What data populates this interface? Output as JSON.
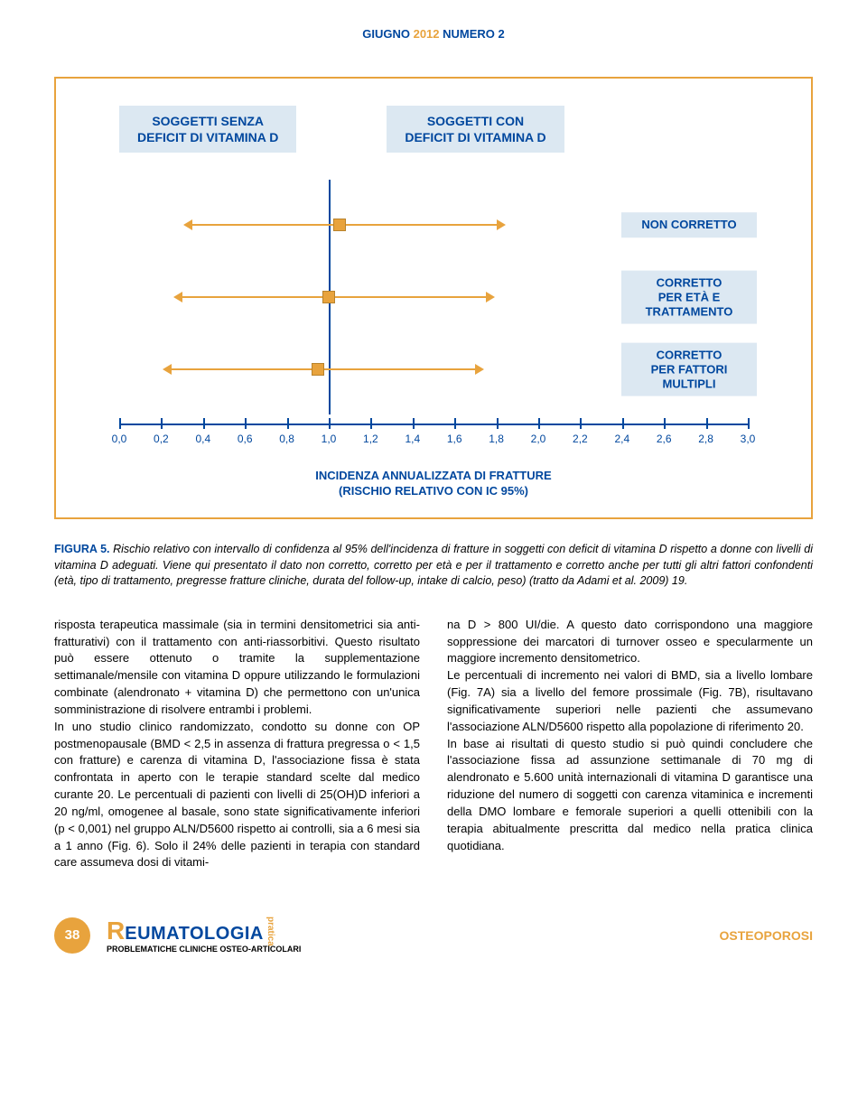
{
  "header": {
    "month": "GIUGNO",
    "year": "2012",
    "numero": "NUMERO 2"
  },
  "chart": {
    "label_left": "SOGGETTI SENZA\nDEFICIT DI VITAMINA D",
    "label_right": "SOGGETTI CON\nDEFICIT DI VITAMINA D",
    "rows": [
      {
        "label": "NON CORRETTO",
        "low": 0.35,
        "point": 1.05,
        "high": 1.8
      },
      {
        "label": "CORRETTO\nPER ETÀ E\nTRATTAMENTO",
        "low": 0.3,
        "point": 1.0,
        "high": 1.75
      },
      {
        "label": "CORRETTO\nPER FATTORI\nMULTIPLI",
        "low": 0.25,
        "point": 0.95,
        "high": 1.7
      }
    ],
    "xmin": 0.0,
    "xmax": 3.0,
    "xstep": 0.2,
    "xticks": [
      "0,0",
      "0,2",
      "0,4",
      "0,6",
      "0,8",
      "1,0",
      "1,2",
      "1,4",
      "1,6",
      "1,8",
      "2,0",
      "2,2",
      "2,4",
      "2,6",
      "2,8",
      "3,0"
    ],
    "axis_title_line1": "INCIDENZA ANNUALIZZATA DI FRATTURE",
    "axis_title_line2": "(RISCHIO RELATIVO CON IC 95%)",
    "divider_at": 1.0,
    "colors": {
      "accent_blue": "#00479e",
      "accent_orange": "#e8a33d",
      "box_bg": "#dce8f2"
    }
  },
  "figure_caption": {
    "label": "FIGURA 5.",
    "text": "Rischio relativo con intervallo di confidenza al 95% dell'incidenza di fratture in soggetti con deficit di vitamina D rispetto a donne con livelli di vitamina D adeguati. Viene qui presentato il dato non corretto, corretto per età e per il trattamento e corretto anche per tutti gli altri fattori confondenti (età, tipo di trattamento, pregresse fratture cliniche, durata del follow-up, intake di calcio, peso) (tratto da Adami et al. 2009) 19."
  },
  "body": {
    "col1": "risposta terapeutica massimale (sia in termini densitometrici sia anti-fratturativi) con il trattamento con anti-riassorbitivi. Questo risultato può essere ottenuto o tramite la supplementazione settimanale/mensile con vitamina D oppure utilizzando le formulazioni combinate (alendronato + vitamina D) che permettono con un'unica somministrazione di risolvere entrambi i problemi.\nIn uno studio clinico randomizzato, condotto su donne con OP postmenopausale (BMD < 2,5 in assenza di frattura pregressa o < 1,5 con fratture) e carenza di vitamina D, l'associazione fissa è stata confrontata in aperto con le terapie standard scelte dal medico curante 20. Le percentuali di pazienti con livelli di 25(OH)D inferiori a 20 ng/ml, omogenee al basale, sono state significativamente inferiori (p < 0,001) nel gruppo ALN/D5600 rispetto ai controlli, sia a 6 mesi sia a 1 anno (Fig. 6). Solo il 24% delle pazienti in terapia con standard care assumeva dosi di vitami-",
    "col2": "na D > 800 UI/die. A questo dato corrispondono una maggiore soppressione dei marcatori di turnover osseo e specularmente un maggiore incremento densitometrico.\nLe percentuali di incremento nei valori di BMD, sia a livello lombare (Fig. 7A) sia a livello del femore prossimale (Fig. 7B), risultavano significativamente superiori nelle pazienti che assumevano l'associazione ALN/D5600 rispetto alla popolazione di riferimento 20.\nIn base ai risultati di questo studio si può quindi concludere che l'associazione fissa ad assunzione settimanale di 70 mg di alendronato e 5.600 unità internazionali di vitamina D garantisce una riduzione del numero di soggetti con carenza vitaminica e incrementi della DMO lombare e femorale superiori a quelli ottenibili con la terapia abitualmente prescritta dal medico nella pratica clinica quotidiana."
  },
  "footer": {
    "page": "38",
    "journal_r": "R",
    "journal_name": "EUMATOLOGIA",
    "journal_pratica": "pratica",
    "journal_sub": "PROBLEMATICHE CLINICHE OSTEO-ARTICOLARI",
    "section": "OSTEOPOROSI"
  }
}
